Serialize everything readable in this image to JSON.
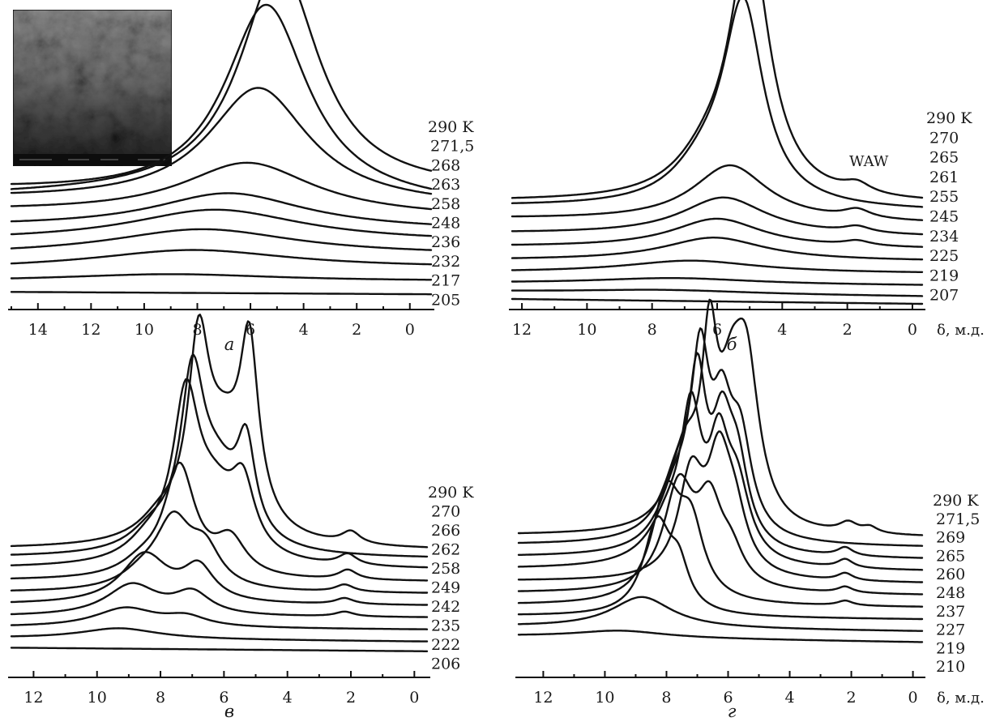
{
  "x_axis_label": "δ, м.д.",
  "colors": {
    "line": "#111111",
    "background": "#ffffff"
  },
  "inset": {
    "present_in_panel": "a",
    "kind": "microscopy-image"
  },
  "chart_data": [
    {
      "type": "line",
      "panel": "а",
      "annotation": "",
      "x_ticks": [
        14,
        12,
        10,
        8,
        6,
        4,
        2,
        0
      ],
      "xlim": [
        15,
        -0.8
      ],
      "x_reversed": true,
      "temperature_labels": [
        "290 K",
        "271,5",
        "268",
        "263",
        "258",
        "248",
        "236",
        "232",
        "217",
        "205"
      ],
      "series": [
        {
          "name": "290 K",
          "baseline": 0.0,
          "right_offset": 0.4,
          "peaks": [
            {
              "center": 4.9,
              "height": 19.2,
              "width": 1.8
            }
          ]
        },
        {
          "name": "271,5",
          "baseline": 0.4,
          "right_offset": -0.8,
          "peaks": [
            {
              "center": 5.4,
              "height": 16.5,
              "width": 1.9
            }
          ]
        },
        {
          "name": "268",
          "baseline": -0.3,
          "right_offset": -0.9,
          "peaks": [
            {
              "center": 5.7,
              "height": 9.8,
              "width": 2.3
            }
          ]
        },
        {
          "name": "263",
          "baseline": -1.3,
          "right_offset": -1.8,
          "peaks": [
            {
              "center": 6.1,
              "height": 4.4,
              "width": 3.0
            }
          ]
        },
        {
          "name": "258",
          "baseline": -2.6,
          "right_offset": -2.9,
          "peaks": [
            {
              "center": 6.8,
              "height": 3.0,
              "width": 3.5
            }
          ]
        },
        {
          "name": "248",
          "baseline": -3.8,
          "right_offset": -3.9,
          "peaks": [
            {
              "center": 7.3,
              "height": 2.7,
              "width": 4.0
            }
          ]
        },
        {
          "name": "236",
          "baseline": -5.0,
          "right_offset": -5.0,
          "peaks": [
            {
              "center": 7.8,
              "height": 2.2,
              "width": 4.3
            }
          ]
        },
        {
          "name": "232",
          "baseline": -6.2,
          "right_offset": -6.1,
          "peaks": [
            {
              "center": 8.2,
              "height": 1.6,
              "width": 4.6
            }
          ]
        },
        {
          "name": "217",
          "baseline": -7.2,
          "right_offset": -7.2,
          "peaks": [
            {
              "center": 9.0,
              "height": 0.6,
              "width": 5.0
            }
          ]
        },
        {
          "name": "205",
          "baseline": -8.1,
          "right_offset": -8.3,
          "peaks": []
        }
      ]
    },
    {
      "type": "line",
      "panel": "б",
      "annotation": "WAW",
      "x_ticks": [
        12,
        10,
        8,
        6,
        4,
        2,
        0
      ],
      "xlim": [
        12.3,
        -0.3
      ],
      "x_reversed": true,
      "temperature_labels": [
        "290 K",
        "270",
        "265",
        "261",
        "255",
        "245",
        "234",
        "225",
        "219",
        "207"
      ],
      "series": [
        {
          "name": "290 K",
          "baseline": 0.0,
          "right_offset": -0.2,
          "peaks": [
            {
              "center": 5.0,
              "height": 20.8,
              "width": 0.75
            },
            {
              "center": 6.3,
              "height": 2.5,
              "width": 1.2
            },
            {
              "center": 1.7,
              "height": 0.8,
              "width": 0.5
            }
          ]
        },
        {
          "name": "270",
          "baseline": -0.4,
          "right_offset": -0.8,
          "peaks": [
            {
              "center": 5.2,
              "height": 16.2,
              "width": 0.75
            },
            {
              "center": 6.4,
              "height": 2.6,
              "width": 1.2
            }
          ]
        },
        {
          "name": "265",
          "baseline": -1.4,
          "right_offset": -1.8,
          "peaks": [
            {
              "center": 5.6,
              "height": 4.6,
              "width": 1.4
            },
            {
              "center": 1.7,
              "height": 0.7,
              "width": 0.5
            }
          ]
        },
        {
          "name": "261",
          "baseline": -2.6,
          "right_offset": -2.9,
          "peaks": [
            {
              "center": 5.8,
              "height": 3.1,
              "width": 1.6
            },
            {
              "center": 1.7,
              "height": 0.5,
              "width": 0.5
            }
          ]
        },
        {
          "name": "255",
          "baseline": -3.7,
          "right_offset": -3.9,
          "peaks": [
            {
              "center": 6.0,
              "height": 2.4,
              "width": 1.7
            },
            {
              "center": 1.7,
              "height": 0.4,
              "width": 0.5
            }
          ]
        },
        {
          "name": "245",
          "baseline": -4.8,
          "right_offset": -4.9,
          "peaks": [
            {
              "center": 6.1,
              "height": 1.9,
              "width": 1.9
            }
          ]
        },
        {
          "name": "234",
          "baseline": -5.8,
          "right_offset": -5.9,
          "peaks": [
            {
              "center": 6.8,
              "height": 1.0,
              "width": 2.5
            }
          ]
        },
        {
          "name": "225",
          "baseline": -6.7,
          "right_offset": -6.9,
          "peaks": [
            {
              "center": 7.3,
              "height": 0.5,
              "width": 3.0
            }
          ]
        },
        {
          "name": "219",
          "baseline": -7.4,
          "right_offset": -7.8,
          "peaks": [
            {
              "center": 7.6,
              "height": 0.3,
              "width": 3.2
            }
          ]
        },
        {
          "name": "207",
          "baseline": -8.0,
          "right_offset": -8.4,
          "peaks": []
        }
      ]
    },
    {
      "type": "line",
      "panel": "в",
      "annotation": "",
      "x_ticks": [
        12,
        10,
        8,
        6,
        4,
        2,
        0
      ],
      "xlim": [
        12.7,
        -0.4
      ],
      "x_reversed": true,
      "temperature_labels": [
        "290 K",
        "270",
        "266",
        "262",
        "258",
        "249",
        "242",
        "235",
        "222",
        "206"
      ],
      "series": [
        {
          "name": "290 K",
          "baseline": 0.0,
          "right_offset": -0.1,
          "peaks": [
            {
              "center": 6.8,
              "height": 14.0,
              "width": 0.4
            },
            {
              "center": 5.2,
              "height": 13.6,
              "width": 0.35
            },
            {
              "center": 6.0,
              "height": 8.0,
              "width": 0.9
            },
            {
              "center": 8.0,
              "height": 1.5,
              "width": 0.8
            },
            {
              "center": 2.0,
              "height": 1.0,
              "width": 0.35
            }
          ]
        },
        {
          "name": "270",
          "baseline": -0.7,
          "right_offset": -0.8,
          "peaks": [
            {
              "center": 7.0,
              "height": 12.9,
              "width": 0.45
            },
            {
              "center": 5.3,
              "height": 7.2,
              "width": 0.35
            },
            {
              "center": 6.2,
              "height": 6.0,
              "width": 0.9
            },
            {
              "center": 8.3,
              "height": 1.4,
              "width": 0.8
            }
          ]
        },
        {
          "name": "266",
          "baseline": -1.6,
          "right_offset": -1.7,
          "peaks": [
            {
              "center": 7.2,
              "height": 12.6,
              "width": 0.5
            },
            {
              "center": 5.4,
              "height": 5.2,
              "width": 0.45
            },
            {
              "center": 6.3,
              "height": 5.0,
              "width": 0.9
            },
            {
              "center": 8.4,
              "height": 1.4,
              "width": 0.8
            },
            {
              "center": 2.1,
              "height": 0.9,
              "width": 0.35
            }
          ]
        },
        {
          "name": "262",
          "baseline": -2.6,
          "right_offset": -2.7,
          "peaks": [
            {
              "center": 7.4,
              "height": 9.2,
              "width": 0.6
            },
            {
              "center": 5.8,
              "height": 3.0,
              "width": 0.6
            },
            {
              "center": 8.6,
              "height": 1.0,
              "width": 0.8
            },
            {
              "center": 2.1,
              "height": 0.8,
              "width": 0.35
            }
          ]
        },
        {
          "name": "258",
          "baseline": -3.6,
          "right_offset": -3.7,
          "peaks": [
            {
              "center": 7.6,
              "height": 5.6,
              "width": 0.7
            },
            {
              "center": 6.6,
              "height": 3.0,
              "width": 0.6
            },
            {
              "center": 8.6,
              "height": 1.0,
              "width": 0.8
            },
            {
              "center": 2.2,
              "height": 0.6,
              "width": 0.35
            }
          ]
        },
        {
          "name": "249",
          "baseline": -4.6,
          "right_offset": -4.7,
          "peaks": [
            {
              "center": 8.5,
              "height": 4.1,
              "width": 0.9
            },
            {
              "center": 6.8,
              "height": 2.8,
              "width": 0.6
            },
            {
              "center": 2.2,
              "height": 0.5,
              "width": 0.35
            }
          ]
        },
        {
          "name": "242",
          "baseline": -5.6,
          "right_offset": -5.7,
          "peaks": [
            {
              "center": 8.9,
              "height": 2.6,
              "width": 1.0
            },
            {
              "center": 7.0,
              "height": 1.8,
              "width": 0.7
            },
            {
              "center": 2.2,
              "height": 0.4,
              "width": 0.35
            }
          ]
        },
        {
          "name": "235",
          "baseline": -6.5,
          "right_offset": -6.7,
          "peaks": [
            {
              "center": 9.1,
              "height": 1.6,
              "width": 1.2
            },
            {
              "center": 7.2,
              "height": 0.8,
              "width": 0.8
            }
          ]
        },
        {
          "name": "222",
          "baseline": -7.4,
          "right_offset": -7.7,
          "peaks": [
            {
              "center": 9.3,
              "height": 0.9,
              "width": 1.5
            }
          ]
        },
        {
          "name": "206",
          "baseline": -8.2,
          "right_offset": -8.5,
          "peaks": []
        }
      ]
    },
    {
      "type": "line",
      "panel": "г",
      "annotation": "",
      "x_ticks": [
        12,
        10,
        8,
        6,
        4,
        2,
        0
      ],
      "xlim": [
        12.8,
        -0.3
      ],
      "x_reversed": true,
      "temperature_labels": [
        "290 K",
        "271,5",
        "269",
        "265",
        "260",
        "248",
        "237",
        "227",
        "219",
        "210"
      ],
      "series": [
        {
          "name": "290 K",
          "baseline": 0.0,
          "right_offset": -0.2,
          "peaks": [
            {
              "center": 6.6,
              "height": 13.0,
              "width": 0.3
            },
            {
              "center": 5.4,
              "height": 12.0,
              "width": 0.5
            },
            {
              "center": 5.9,
              "height": 8.4,
              "width": 0.5
            },
            {
              "center": 7.4,
              "height": 6.0,
              "width": 0.6
            },
            {
              "center": 2.1,
              "height": 0.8,
              "width": 0.35
            },
            {
              "center": 1.4,
              "height": 0.5,
              "width": 0.3
            }
          ]
        },
        {
          "name": "271,5",
          "baseline": -0.8,
          "right_offset": -1.0,
          "peaks": [
            {
              "center": 6.9,
              "height": 12.8,
              "width": 0.35
            },
            {
              "center": 6.2,
              "height": 8.5,
              "width": 0.4
            },
            {
              "center": 5.6,
              "height": 7.4,
              "width": 0.45
            },
            {
              "center": 7.6,
              "height": 5.0,
              "width": 0.7
            }
          ]
        },
        {
          "name": "269",
          "baseline": -1.8,
          "right_offset": -2.0,
          "peaks": [
            {
              "center": 7.0,
              "height": 12.4,
              "width": 0.35
            },
            {
              "center": 6.2,
              "height": 8.3,
              "width": 0.4
            },
            {
              "center": 5.7,
              "height": 6.2,
              "width": 0.45
            },
            {
              "center": 7.7,
              "height": 4.8,
              "width": 0.7
            },
            {
              "center": 2.2,
              "height": 0.7,
              "width": 0.3
            }
          ]
        },
        {
          "name": "265",
          "baseline": -2.8,
          "right_offset": -3.0,
          "peaks": [
            {
              "center": 7.2,
              "height": 11.0,
              "width": 0.4
            },
            {
              "center": 6.3,
              "height": 8.3,
              "width": 0.4
            },
            {
              "center": 5.7,
              "height": 5.6,
              "width": 0.5
            },
            {
              "center": 7.9,
              "height": 3.5,
              "width": 0.8
            },
            {
              "center": 2.2,
              "height": 0.7,
              "width": 0.3
            }
          ]
        },
        {
          "name": "260",
          "baseline": -3.8,
          "right_offset": -4.0,
          "peaks": [
            {
              "center": 7.2,
              "height": 8.2,
              "width": 0.5
            },
            {
              "center": 6.3,
              "height": 8.4,
              "width": 0.45
            },
            {
              "center": 5.8,
              "height": 4.5,
              "width": 0.5
            },
            {
              "center": 2.2,
              "height": 0.6,
              "width": 0.3
            }
          ]
        },
        {
          "name": "248",
          "baseline": -4.8,
          "right_offset": -5.0,
          "peaks": [
            {
              "center": 7.6,
              "height": 8.5,
              "width": 0.6
            },
            {
              "center": 6.6,
              "height": 6.3,
              "width": 0.5
            },
            {
              "center": 5.9,
              "height": 2.5,
              "width": 0.5
            },
            {
              "center": 2.2,
              "height": 0.5,
              "width": 0.3
            }
          ]
        },
        {
          "name": "237",
          "baseline": -5.8,
          "right_offset": -6.0,
          "peaks": [
            {
              "center": 8.0,
              "height": 8.8,
              "width": 0.6
            },
            {
              "center": 7.2,
              "height": 5.5,
              "width": 0.5
            },
            {
              "center": 2.2,
              "height": 0.4,
              "width": 0.3
            }
          ]
        },
        {
          "name": "227",
          "baseline": -6.7,
          "right_offset": -7.0,
          "peaks": [
            {
              "center": 8.3,
              "height": 7.6,
              "width": 0.55
            },
            {
              "center": 7.6,
              "height": 3.2,
              "width": 0.4
            }
          ]
        },
        {
          "name": "219",
          "baseline": -7.6,
          "right_offset": -8.0,
          "peaks": [
            {
              "center": 8.8,
              "height": 2.6,
              "width": 1.2
            }
          ]
        },
        {
          "name": "210",
          "baseline": -8.4,
          "right_offset": -8.9,
          "peaks": [
            {
              "center": 9.5,
              "height": 0.6,
              "width": 1.8
            }
          ]
        }
      ]
    }
  ]
}
